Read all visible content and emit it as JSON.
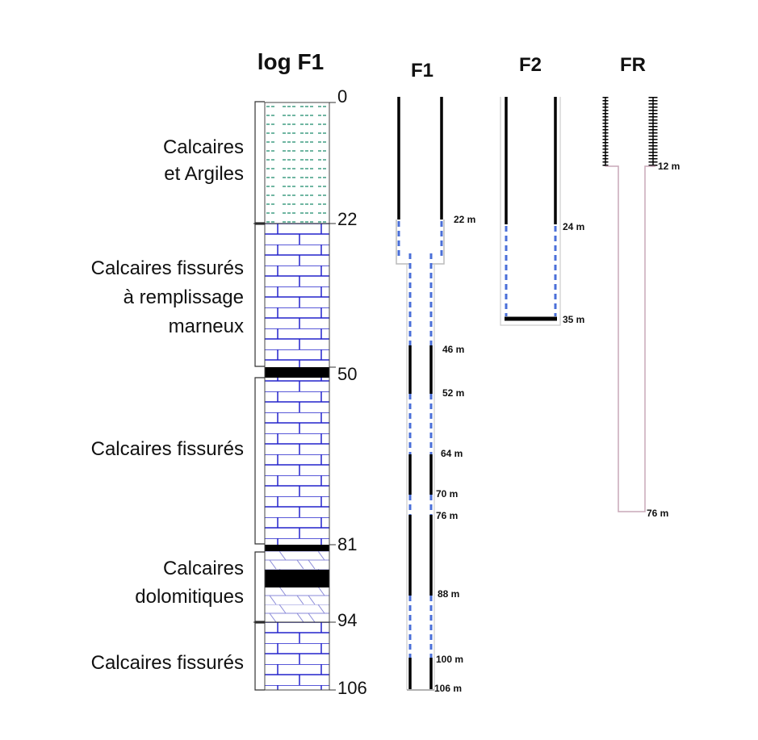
{
  "log": {
    "title": "log F1",
    "depths": [
      "0",
      "22",
      "50",
      "81",
      "94",
      "106"
    ],
    "units": [
      {
        "lines": [
          "Calcaires",
          "et Argiles"
        ]
      },
      {
        "lines": [
          "Calcaires fissurés",
          "à remplissage",
          "marneux"
        ]
      },
      {
        "lines": [
          "Calcaires fissurés"
        ]
      },
      {
        "lines": [
          "Calcaires",
          "dolomitiques"
        ]
      },
      {
        "lines": [
          "Calcaires fissurés"
        ]
      }
    ]
  },
  "wells": {
    "f1": {
      "title": "F1",
      "depths": [
        "22 m",
        "46 m",
        "52 m",
        "64 m",
        "70 m",
        "76 m",
        "88 m",
        "100 m",
        "106 m"
      ]
    },
    "f2": {
      "title": "F2",
      "depths": [
        "24 m",
        "35 m"
      ]
    },
    "fr": {
      "title": "FR",
      "depths": [
        "12 m",
        "76 m"
      ]
    }
  },
  "colors": {
    "lithology_line": "#2222cc",
    "clay_dash": "#1a8a6a",
    "screen_dash": "#4a6fd8",
    "casing": "#000000",
    "fr_outline": "#c9a8b8"
  }
}
